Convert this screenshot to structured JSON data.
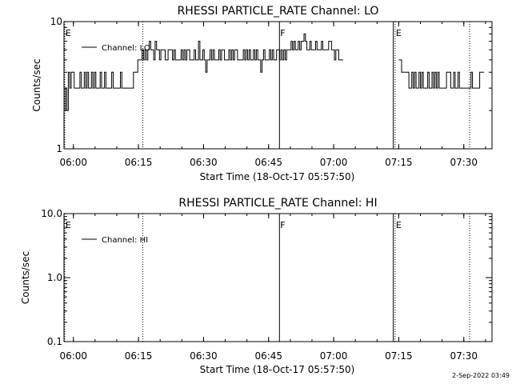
{
  "footer": {
    "timestamp": "2-Sep-2022 03:49"
  },
  "chart_data": [
    {
      "type": "line",
      "title": "RHESSI PARTICLE_RATE Channel: LO",
      "xlabel": "Start Time (18-Oct-17 05:57:50)",
      "ylabel": "Counts/sec",
      "yscale": "log",
      "xlim": [
        "05:57:50",
        "07:36:30"
      ],
      "ylim": [
        1,
        10
      ],
      "x_ticks": [
        "06:00",
        "06:15",
        "06:30",
        "06:45",
        "07:00",
        "07:15",
        "07:30"
      ],
      "y_ticks": [
        "1",
        "10"
      ],
      "legend": {
        "entry": "Channel: LO",
        "placement": "top-left"
      },
      "markers": [
        {
          "time": "05:58:00",
          "label": "E",
          "style": "dotted"
        },
        {
          "time": "06:16:00",
          "label": "",
          "style": "dotted"
        },
        {
          "time": "06:47:30",
          "label": "F",
          "style": "solid"
        },
        {
          "time": "07:13:45",
          "label": "",
          "style": "solid"
        },
        {
          "time": "07:14:10",
          "label": "E",
          "style": "dotted"
        },
        {
          "time": "07:31:20",
          "label": "",
          "style": "dotted"
        }
      ],
      "series": [
        {
          "name": "Channel: LO",
          "segments": [
            {
              "start": "05:57:50",
              "step_seconds": 20,
              "values": [
                2,
                3,
                2,
                4,
                3,
                4,
                4,
                3,
                3,
                3,
                3,
                4,
                3,
                3,
                4,
                3,
                4,
                3,
                3,
                4,
                3,
                4,
                3,
                3,
                3,
                4,
                3,
                3,
                4,
                3,
                3,
                3,
                3,
                4,
                3,
                3,
                3,
                3,
                3,
                4,
                3,
                3,
                3,
                3,
                3,
                3,
                3,
                3,
                4,
                4,
                4,
                5,
                5,
                5,
                6,
                5,
                6,
                5,
                6,
                7,
                6,
                6,
                5,
                7,
                6,
                6,
                5,
                6,
                6,
                6,
                5,
                5,
                6,
                6,
                6,
                5,
                6,
                5,
                5,
                5,
                5,
                6,
                5,
                6,
                5,
                6,
                6,
                5,
                5,
                5,
                6,
                5,
                5,
                7,
                5,
                5,
                6,
                5,
                4,
                5,
                5,
                6,
                5,
                6,
                5,
                5,
                5,
                6,
                5,
                6,
                6,
                5,
                5,
                5,
                6,
                5,
                6,
                5,
                6,
                6,
                5,
                5,
                5,
                5,
                6,
                5,
                6,
                5,
                6,
                5,
                5,
                6,
                5,
                6,
                5,
                5,
                4,
                5,
                6,
                5,
                5,
                5,
                6,
                5,
                6,
                5,
                5,
                6,
                6,
                5,
                6,
                5,
                6,
                5,
                6,
                6,
                6,
                7,
                6,
                7,
                6,
                6,
                7,
                6,
                7,
                7,
                8,
                7,
                6,
                6,
                7,
                6,
                6,
                6,
                7,
                6,
                6,
                6,
                7,
                6,
                6,
                6,
                6,
                7,
                7,
                6,
                6,
                5,
                6,
                6,
                5,
                5,
                5
              ]
            },
            {
              "start": "07:15:00",
              "step_seconds": 20,
              "values": [
                5,
                5,
                4,
                4,
                4,
                4,
                4,
                3,
                3,
                4,
                3,
                4,
                3,
                3,
                4,
                3,
                4,
                3,
                3,
                3,
                4,
                3,
                3,
                4,
                3,
                4,
                3,
                4,
                3,
                3,
                3,
                3,
                3,
                4,
                4,
                4,
                3,
                3,
                4,
                3,
                3,
                4,
                3,
                3,
                3,
                3,
                3,
                3,
                3,
                3,
                4,
                3,
                3,
                3,
                3,
                3,
                4,
                4,
                4
              ]
            }
          ]
        }
      ]
    },
    {
      "type": "line",
      "title": "RHESSI PARTICLE_RATE Channel: HI",
      "xlabel": "Start Time (18-Oct-17 05:57:50)",
      "ylabel": "Counts/sec",
      "yscale": "log",
      "xlim": [
        "05:57:50",
        "07:36:30"
      ],
      "ylim": [
        0.1,
        10
      ],
      "x_ticks": [
        "06:00",
        "06:15",
        "06:30",
        "06:45",
        "07:00",
        "07:15",
        "07:30"
      ],
      "y_ticks": [
        "0.1",
        "1.0",
        "10.0"
      ],
      "legend": {
        "entry": "Channel: HI",
        "placement": "top-left"
      },
      "markers": [
        {
          "time": "05:58:00",
          "label": "E",
          "style": "dotted"
        },
        {
          "time": "06:16:00",
          "label": "",
          "style": "dotted"
        },
        {
          "time": "06:47:30",
          "label": "F",
          "style": "solid"
        },
        {
          "time": "07:13:45",
          "label": "",
          "style": "solid"
        },
        {
          "time": "07:14:10",
          "label": "E",
          "style": "dotted"
        },
        {
          "time": "07:31:20",
          "label": "",
          "style": "dotted"
        }
      ],
      "series": []
    }
  ]
}
